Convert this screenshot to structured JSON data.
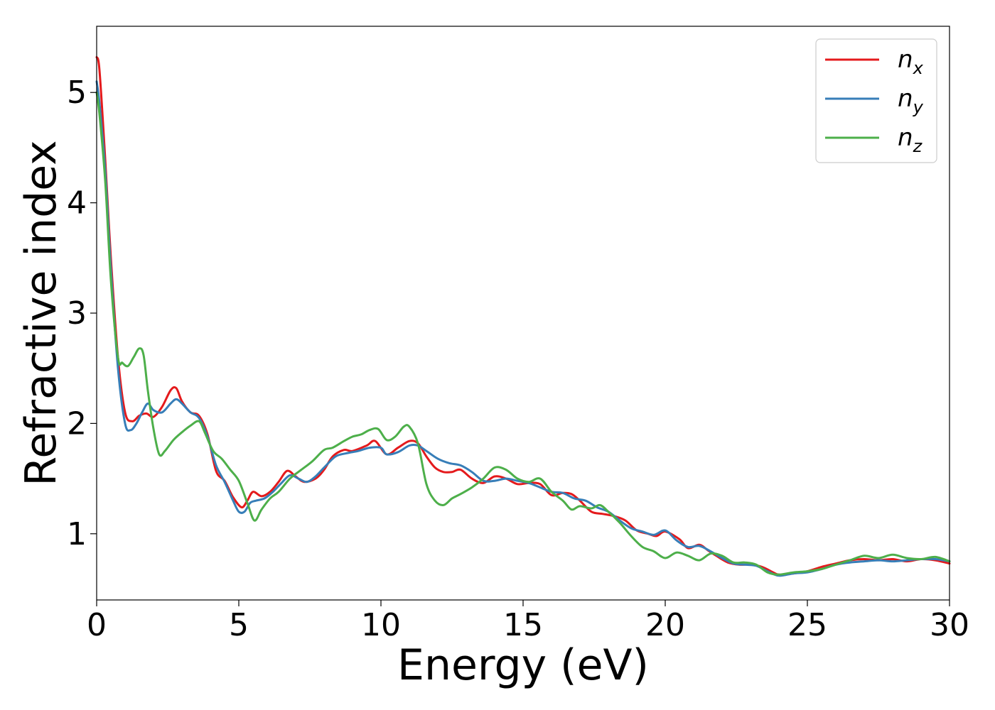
{
  "chart_data": {
    "type": "line",
    "title": "",
    "xlabel": "Energy (eV)",
    "ylabel": "Refractive index",
    "xlim": [
      0,
      30
    ],
    "ylim": [
      0.4,
      5.6
    ],
    "xticks": [
      0,
      5,
      10,
      15,
      20,
      25,
      30
    ],
    "xtick_labels": [
      "0",
      "5",
      "10",
      "15",
      "20",
      "25",
      "30"
    ],
    "yticks": [
      1,
      2,
      3,
      4,
      5
    ],
    "ytick_labels": [
      "1",
      "2",
      "3",
      "4",
      "5"
    ],
    "grid": false,
    "legend_position": "top-right",
    "series": [
      {
        "name": "n",
        "subscript": "x",
        "color": "#e41a1c",
        "x": [
          0,
          0.1,
          0.3,
          0.5,
          0.75,
          1.0,
          1.25,
          1.5,
          1.75,
          2.0,
          2.3,
          2.6,
          2.8,
          3.0,
          3.3,
          3.6,
          3.9,
          4.2,
          4.5,
          4.8,
          5.1,
          5.3,
          5.5,
          5.8,
          6.1,
          6.4,
          6.7,
          7.0,
          7.3,
          7.7,
          8.0,
          8.3,
          8.7,
          9.0,
          9.5,
          9.8,
          10.2,
          10.6,
          11.0,
          11.3,
          11.6,
          11.9,
          12.2,
          12.5,
          12.8,
          13.2,
          13.6,
          14.0,
          14.4,
          14.8,
          15.2,
          15.6,
          16.0,
          16.4,
          16.7,
          17.0,
          17.4,
          17.8,
          18.2,
          18.6,
          19.0,
          19.4,
          19.7,
          20.0,
          20.5,
          20.8,
          21.2,
          21.5,
          21.8,
          22.2,
          22.6,
          23.0,
          23.4,
          23.8,
          24.0,
          24.5,
          25.0,
          25.5,
          26.0,
          26.5,
          27.0,
          27.5,
          28.0,
          28.5,
          29.0,
          29.5,
          30.0
        ],
        "values": [
          5.32,
          5.2,
          4.4,
          3.5,
          2.6,
          2.1,
          2.02,
          2.07,
          2.09,
          2.06,
          2.15,
          2.3,
          2.32,
          2.2,
          2.1,
          2.07,
          1.9,
          1.57,
          1.48,
          1.33,
          1.24,
          1.3,
          1.38,
          1.34,
          1.38,
          1.47,
          1.57,
          1.52,
          1.47,
          1.5,
          1.58,
          1.7,
          1.76,
          1.75,
          1.8,
          1.84,
          1.72,
          1.78,
          1.84,
          1.82,
          1.7,
          1.6,
          1.56,
          1.56,
          1.58,
          1.5,
          1.46,
          1.52,
          1.5,
          1.45,
          1.46,
          1.45,
          1.35,
          1.37,
          1.36,
          1.3,
          1.2,
          1.18,
          1.16,
          1.12,
          1.03,
          1.0,
          0.98,
          1.02,
          0.95,
          0.87,
          0.9,
          0.85,
          0.8,
          0.74,
          0.72,
          0.72,
          0.7,
          0.65,
          0.63,
          0.64,
          0.66,
          0.7,
          0.73,
          0.76,
          0.77,
          0.76,
          0.77,
          0.75,
          0.77,
          0.76,
          0.73
        ]
      },
      {
        "name": "n",
        "subscript": "y",
        "color": "#377eb8",
        "x": [
          0,
          0.1,
          0.3,
          0.5,
          0.75,
          1.0,
          1.2,
          1.4,
          1.6,
          1.8,
          2.0,
          2.3,
          2.6,
          2.8,
          3.0,
          3.3,
          3.6,
          3.9,
          4.2,
          4.5,
          4.8,
          5.0,
          5.2,
          5.4,
          5.6,
          5.9,
          6.2,
          6.5,
          6.8,
          7.1,
          7.4,
          7.7,
          8.0,
          8.4,
          8.8,
          9.2,
          9.6,
          10.0,
          10.2,
          10.6,
          11.0,
          11.3,
          11.6,
          12.0,
          12.4,
          12.8,
          13.2,
          13.6,
          14.0,
          14.4,
          14.8,
          15.2,
          15.6,
          16.0,
          16.4,
          16.8,
          17.2,
          17.6,
          18.0,
          18.4,
          18.8,
          19.2,
          19.6,
          20.0,
          20.4,
          20.8,
          21.2,
          21.6,
          22.0,
          22.4,
          22.8,
          23.2,
          23.6,
          24.0,
          24.5,
          25.0,
          25.5,
          26.0,
          26.5,
          27.0,
          27.5,
          28.0,
          28.5,
          29.0,
          29.5,
          30.0
        ],
        "values": [
          5.1,
          4.9,
          4.3,
          3.4,
          2.5,
          2.0,
          1.94,
          2.0,
          2.1,
          2.18,
          2.12,
          2.1,
          2.18,
          2.22,
          2.18,
          2.1,
          2.05,
          1.88,
          1.62,
          1.47,
          1.3,
          1.2,
          1.2,
          1.28,
          1.3,
          1.32,
          1.38,
          1.46,
          1.53,
          1.5,
          1.47,
          1.52,
          1.6,
          1.7,
          1.73,
          1.75,
          1.78,
          1.78,
          1.72,
          1.74,
          1.8,
          1.8,
          1.75,
          1.68,
          1.64,
          1.62,
          1.56,
          1.48,
          1.48,
          1.5,
          1.48,
          1.46,
          1.42,
          1.38,
          1.37,
          1.32,
          1.3,
          1.24,
          1.2,
          1.12,
          1.05,
          1.02,
          0.99,
          1.03,
          0.94,
          0.88,
          0.89,
          0.84,
          0.78,
          0.73,
          0.72,
          0.71,
          0.66,
          0.62,
          0.64,
          0.65,
          0.68,
          0.72,
          0.74,
          0.75,
          0.76,
          0.75,
          0.76,
          0.77,
          0.77,
          0.75
        ]
      },
      {
        "name": "n",
        "subscript": "z",
        "color": "#4daf4a",
        "x": [
          0,
          0.1,
          0.3,
          0.5,
          0.75,
          0.9,
          1.1,
          1.3,
          1.5,
          1.65,
          1.8,
          2.0,
          2.2,
          2.4,
          2.7,
          3.0,
          3.3,
          3.6,
          3.8,
          4.1,
          4.4,
          4.7,
          5.0,
          5.3,
          5.55,
          5.8,
          6.1,
          6.4,
          6.8,
          7.2,
          7.6,
          8.0,
          8.3,
          8.7,
          9.0,
          9.3,
          9.6,
          9.9,
          10.2,
          10.5,
          10.8,
          11.0,
          11.3,
          11.6,
          11.9,
          12.2,
          12.5,
          12.8,
          13.2,
          13.6,
          14.0,
          14.4,
          14.8,
          15.2,
          15.6,
          16.0,
          16.4,
          16.7,
          17.0,
          17.4,
          17.7,
          18.0,
          18.4,
          18.8,
          19.2,
          19.6,
          20.0,
          20.4,
          20.8,
          21.2,
          21.6,
          22.0,
          22.4,
          22.8,
          23.2,
          23.6,
          24.0,
          24.5,
          25.0,
          25.5,
          26.0,
          26.5,
          27.0,
          27.5,
          28.0,
          28.5,
          29.0,
          29.5,
          30.0
        ],
        "values": [
          5.0,
          4.8,
          4.2,
          3.3,
          2.6,
          2.55,
          2.52,
          2.6,
          2.68,
          2.62,
          2.3,
          1.95,
          1.72,
          1.75,
          1.85,
          1.92,
          1.98,
          2.02,
          1.92,
          1.75,
          1.68,
          1.58,
          1.48,
          1.28,
          1.12,
          1.22,
          1.32,
          1.38,
          1.5,
          1.58,
          1.66,
          1.76,
          1.78,
          1.84,
          1.88,
          1.9,
          1.94,
          1.95,
          1.85,
          1.88,
          1.97,
          1.97,
          1.82,
          1.45,
          1.3,
          1.26,
          1.32,
          1.36,
          1.42,
          1.5,
          1.6,
          1.58,
          1.5,
          1.47,
          1.5,
          1.38,
          1.3,
          1.22,
          1.25,
          1.23,
          1.26,
          1.2,
          1.1,
          0.98,
          0.88,
          0.84,
          0.78,
          0.83,
          0.8,
          0.76,
          0.82,
          0.8,
          0.74,
          0.74,
          0.72,
          0.65,
          0.63,
          0.65,
          0.66,
          0.68,
          0.72,
          0.76,
          0.8,
          0.78,
          0.81,
          0.78,
          0.77,
          0.79,
          0.75
        ]
      }
    ]
  }
}
